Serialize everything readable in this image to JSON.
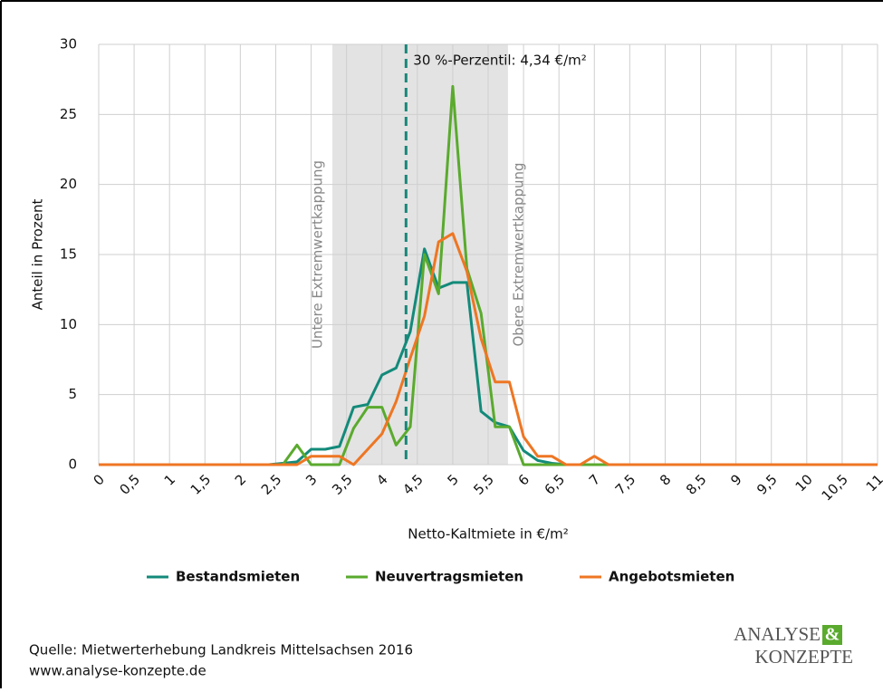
{
  "chart_data": {
    "type": "line",
    "x_label": "Netto-Kaltmiete in €/m²",
    "y_label": "Anteil in Prozent",
    "x": [
      0,
      2.4,
      2.6,
      2.8,
      3.0,
      3.2,
      3.4,
      3.6,
      3.8,
      4.0,
      4.2,
      4.4,
      4.6,
      4.8,
      5.0,
      5.2,
      5.4,
      5.6,
      5.8,
      6.0,
      6.2,
      6.4,
      6.6,
      6.8,
      7.0,
      7.2,
      7.4,
      11
    ],
    "series": [
      {
        "name": "Bestandsmieten",
        "color": "#138a7a",
        "values": [
          0,
          0,
          0.1,
          0.2,
          1.1,
          1.1,
          1.3,
          4.1,
          4.3,
          6.4,
          6.9,
          9.5,
          15.4,
          12.6,
          13.0,
          13.0,
          3.8,
          3.0,
          2.7,
          1.0,
          0.3,
          0.1,
          0,
          0,
          0,
          0,
          0,
          0
        ]
      },
      {
        "name": "Neuvertragsmieten",
        "color": "#5aaa2e",
        "values": [
          0,
          0,
          0,
          1.4,
          0,
          0,
          0,
          2.6,
          4.1,
          4.1,
          1.4,
          2.7,
          15.0,
          12.2,
          27.0,
          14.0,
          10.8,
          2.7,
          2.7,
          0,
          0,
          0,
          0,
          0,
          0,
          0,
          0,
          0
        ]
      },
      {
        "name": "Angebotsmieten",
        "color": "#ee7623",
        "values": [
          0,
          0,
          0,
          0,
          0.6,
          0.6,
          0.6,
          0,
          1.1,
          2.2,
          4.5,
          7.6,
          10.6,
          15.9,
          16.5,
          13.8,
          9.0,
          5.9,
          5.9,
          2.0,
          0.6,
          0.6,
          0,
          0,
          0.6,
          0,
          0,
          0
        ]
      }
    ],
    "xlim": [
      0,
      11
    ],
    "ylim": [
      0,
      30
    ],
    "xticks": [
      0,
      {
        "value": 0.5,
        "label": "0,5"
      },
      1,
      {
        "value": 1.5,
        "label": "1,5"
      },
      2,
      {
        "value": 2.5,
        "label": "2,5"
      },
      3,
      {
        "value": 3.5,
        "label": "3,5"
      },
      4,
      {
        "value": 4.5,
        "label": "4,5"
      },
      5,
      {
        "value": 5.5,
        "label": "5,5"
      },
      6,
      {
        "value": 6.5,
        "label": "6,5"
      },
      7,
      {
        "value": 7.5,
        "label": "7,5"
      },
      8,
      {
        "value": 8.5,
        "label": "8,5"
      },
      9,
      {
        "value": 9.5,
        "label": "9,5"
      },
      10,
      {
        "value": 10.5,
        "label": "10,5"
      },
      11
    ],
    "yticks": [
      0,
      5,
      10,
      15,
      20,
      25,
      30
    ],
    "grid": true,
    "band": {
      "range": [
        3.3,
        5.78
      ],
      "lower_label": "Untere Extremwertkappung",
      "upper_label": "Obere Extremwertkappung"
    },
    "percentile": {
      "value": 4.34,
      "label": "30 %-Perzentil: 4,34 €/m²",
      "color": "#17877a"
    },
    "legend": "bottom"
  },
  "footer": {
    "source": "Quelle: Mietwerterhebung Landkreis Mittelsachsen 2016",
    "url": "www.analyse-konzepte.de",
    "logo_line1": "ANALYSE",
    "logo_amp": "&",
    "logo_line2": "KONZEPTE"
  }
}
